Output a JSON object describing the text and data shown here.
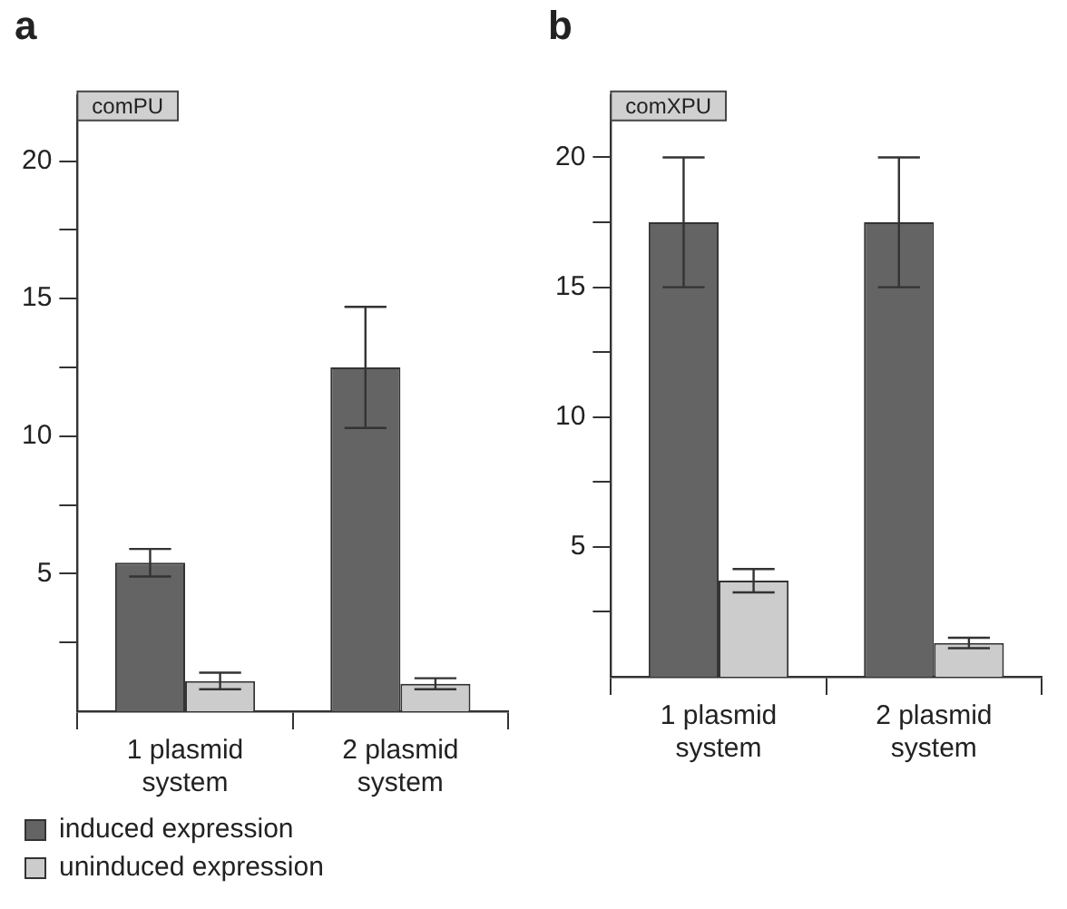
{
  "chart_data": [
    {
      "type": "bar",
      "title": "a",
      "annotations": [
        "comPU"
      ],
      "categories": [
        "1 plasmid system",
        "2 plasmid system"
      ],
      "series": [
        {
          "name": "induced expression",
          "color": "#646464",
          "values": [
            5.4,
            12.5
          ],
          "errors": [
            0.5,
            2.2
          ]
        },
        {
          "name": "uninduced expression",
          "color": "#cccccc",
          "values": [
            1.1,
            1.0
          ],
          "errors": [
            0.3,
            0.2
          ]
        }
      ],
      "ylim": [
        0,
        22.4
      ],
      "yticks": [
        {
          "value": 2.5,
          "label": null
        },
        5,
        {
          "value": 7.5,
          "label": null
        },
        10,
        {
          "value": 12.5,
          "label": null
        },
        15,
        {
          "value": 17.5,
          "label": null
        },
        20
      ],
      "grid": false,
      "legend": "bottom left"
    },
    {
      "type": "bar",
      "title": "b",
      "annotations": [
        "comXPU"
      ],
      "categories": [
        "1 plasmid system",
        "2 plasmid system"
      ],
      "series": [
        {
          "color": "#646464",
          "values": [
            17.5,
            17.5
          ],
          "errors": [
            2.5,
            2.5
          ]
        },
        {
          "color": "#cccccc",
          "values": [
            3.7,
            1.3
          ],
          "errors": [
            0.45,
            0.2
          ]
        }
      ],
      "ylim": [
        0,
        22.4
      ],
      "yticks": [
        {
          "value": 2.5,
          "label": null
        },
        5,
        {
          "value": 7.5,
          "label": null
        },
        10,
        {
          "value": 12.5,
          "label": null
        },
        15,
        {
          "value": 17.5,
          "label": null
        },
        20
      ],
      "grid": false
    }
  ]
}
